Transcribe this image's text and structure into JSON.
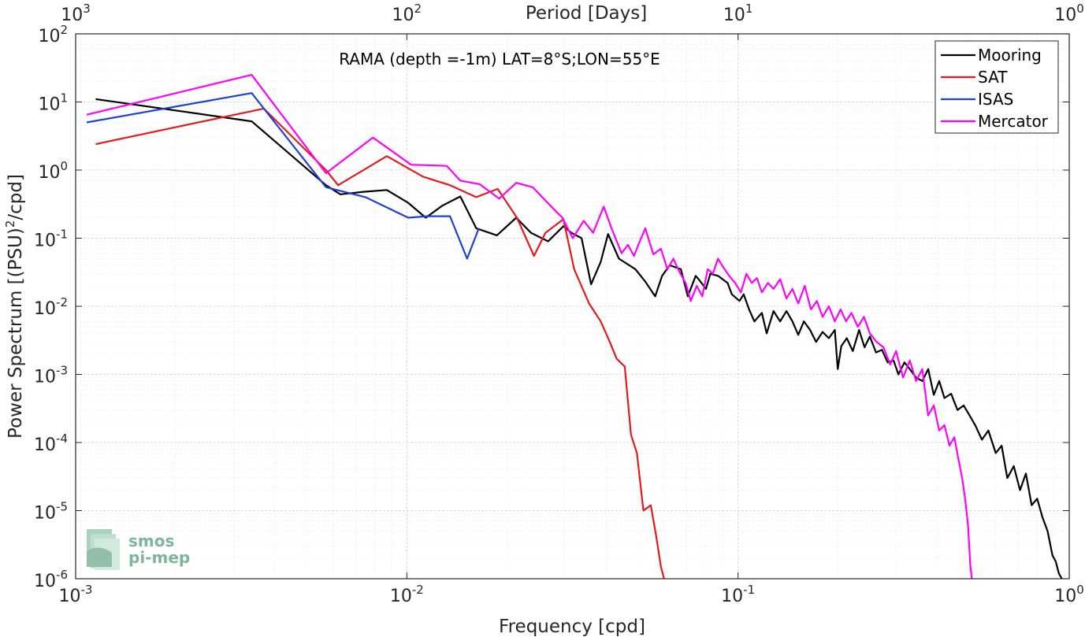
{
  "chart_data": {
    "type": "line",
    "title": "",
    "annotation": "RAMA (depth =-1m) LAT=8°S;LON=55°E",
    "xlabel": "Frequency [cpd]",
    "ylabel_main": "Power Spectrum [(PSU)",
    "ylabel_sup": "2",
    "ylabel_tail": "/cpd]",
    "x2label": "Period [Days]",
    "xscale": "log",
    "yscale": "log",
    "xlim": [
      0.001,
      1
    ],
    "ylim": [
      1e-06,
      100
    ],
    "grid": true,
    "legend_position": "top-right",
    "x_ticks": [
      {
        "value": 0.001,
        "base": "10",
        "exp": "-3"
      },
      {
        "value": 0.01,
        "base": "10",
        "exp": "-2"
      },
      {
        "value": 0.1,
        "base": "10",
        "exp": "-1"
      },
      {
        "value": 1,
        "base": "10",
        "exp": "0"
      }
    ],
    "x2_ticks": [
      {
        "value": 0.001,
        "base": "10",
        "exp": "3"
      },
      {
        "value": 0.01,
        "base": "10",
        "exp": "2"
      },
      {
        "value": 0.1,
        "base": "10",
        "exp": "1"
      },
      {
        "value": 1,
        "base": "10",
        "exp": "0"
      }
    ],
    "y_ticks": [
      {
        "value": 1e-06,
        "base": "10",
        "exp": "-6"
      },
      {
        "value": 1e-05,
        "base": "10",
        "exp": "-5"
      },
      {
        "value": 0.0001,
        "base": "10",
        "exp": "-4"
      },
      {
        "value": 0.001,
        "base": "10",
        "exp": "-3"
      },
      {
        "value": 0.01,
        "base": "10",
        "exp": "-2"
      },
      {
        "value": 0.1,
        "base": "10",
        "exp": "-1"
      },
      {
        "value": 1,
        "base": "10",
        "exp": "0"
      },
      {
        "value": 10,
        "base": "10",
        "exp": "1"
      },
      {
        "value": 100,
        "base": "10",
        "exp": "2"
      }
    ],
    "series": [
      {
        "name": "Mooring",
        "color": "#000000",
        "points": [
          [
            0.00115,
            11
          ],
          [
            0.0034,
            5.2
          ],
          [
            0.0057,
            0.6
          ],
          [
            0.0063,
            0.44
          ],
          [
            0.0074,
            0.48
          ],
          [
            0.0087,
            0.51
          ],
          [
            0.0101,
            0.33
          ],
          [
            0.0114,
            0.2
          ],
          [
            0.0128,
            0.3
          ],
          [
            0.0145,
            0.41
          ],
          [
            0.0162,
            0.14
          ],
          [
            0.0187,
            0.11
          ],
          [
            0.0214,
            0.2
          ],
          [
            0.0237,
            0.12
          ],
          [
            0.0267,
            0.09
          ],
          [
            0.0297,
            0.15
          ],
          [
            0.0314,
            0.12
          ],
          [
            0.0337,
            0.1
          ],
          [
            0.036,
            0.021
          ],
          [
            0.0385,
            0.045
          ],
          [
            0.0405,
            0.115
          ],
          [
            0.0437,
            0.05
          ],
          [
            0.049,
            0.035
          ],
          [
            0.0525,
            0.023
          ],
          [
            0.0562,
            0.014
          ],
          [
            0.059,
            0.028
          ],
          [
            0.0622,
            0.04
          ],
          [
            0.0672,
            0.035
          ],
          [
            0.0705,
            0.014
          ],
          [
            0.0745,
            0.028
          ],
          [
            0.0765,
            0.024
          ],
          [
            0.08,
            0.018
          ],
          [
            0.0825,
            0.03
          ],
          [
            0.087,
            0.028
          ],
          [
            0.093,
            0.022
          ],
          [
            0.0958,
            0.015
          ],
          [
            0.101,
            0.012
          ],
          [
            0.104,
            0.015
          ],
          [
            0.108,
            0.009
          ],
          [
            0.112,
            0.006
          ],
          [
            0.118,
            0.008
          ],
          [
            0.122,
            0.004
          ],
          [
            0.128,
            0.0085
          ],
          [
            0.134,
            0.006
          ],
          [
            0.14,
            0.0085
          ],
          [
            0.146,
            0.006
          ],
          [
            0.152,
            0.0038
          ],
          [
            0.158,
            0.006
          ],
          [
            0.165,
            0.0045
          ],
          [
            0.172,
            0.003
          ],
          [
            0.18,
            0.0042
          ],
          [
            0.188,
            0.0034
          ],
          [
            0.196,
            0.0045
          ],
          [
            0.2,
            0.0012
          ],
          [
            0.205,
            0.0026
          ],
          [
            0.213,
            0.0034
          ],
          [
            0.222,
            0.0022
          ],
          [
            0.232,
            0.0045
          ],
          [
            0.241,
            0.0025
          ],
          [
            0.25,
            0.0036
          ],
          [
            0.261,
            0.0021
          ],
          [
            0.272,
            0.0023
          ],
          [
            0.283,
            0.0015
          ],
          [
            0.295,
            0.0016
          ],
          [
            0.305,
            0.001
          ],
          [
            0.318,
            0.0015
          ],
          [
            0.33,
            0.0012
          ],
          [
            0.345,
            0.0009
          ],
          [
            0.36,
            0.0008
          ],
          [
            0.375,
            0.0012
          ],
          [
            0.39,
            0.0005
          ],
          [
            0.405,
            0.0008
          ],
          [
            0.42,
            0.00045
          ],
          [
            0.44,
            0.00052
          ],
          [
            0.46,
            0.0003
          ],
          [
            0.48,
            0.00035
          ],
          [
            0.5,
            0.00025
          ],
          [
            0.52,
            0.00018
          ],
          [
            0.545,
            0.00011
          ],
          [
            0.57,
            0.00015
          ],
          [
            0.6,
            7e-05
          ],
          [
            0.625,
            9e-05
          ],
          [
            0.65,
            3e-05
          ],
          [
            0.68,
            4.5e-05
          ],
          [
            0.71,
            2e-05
          ],
          [
            0.74,
            3.5e-05
          ],
          [
            0.77,
            1.2e-05
          ],
          [
            0.8,
            1.5e-05
          ],
          [
            0.83,
            8e-06
          ],
          [
            0.86,
            5e-06
          ],
          [
            0.89,
            2.2e-06
          ],
          [
            0.91,
            1.8e-06
          ],
          [
            0.93,
            1.2e-06
          ],
          [
            0.95,
            1e-06
          ]
        ]
      },
      {
        "name": "SAT",
        "color": "#e41a1c",
        "points": [
          [
            0.00115,
            2.4
          ],
          [
            0.0037,
            8.0
          ],
          [
            0.0057,
            1.0
          ],
          [
            0.0062,
            0.6
          ],
          [
            0.0087,
            1.6
          ],
          [
            0.0112,
            0.8
          ],
          [
            0.0135,
            0.6
          ],
          [
            0.0162,
            0.4
          ],
          [
            0.0188,
            0.53
          ],
          [
            0.0215,
            0.2
          ],
          [
            0.0242,
            0.055
          ],
          [
            0.0262,
            0.12
          ],
          [
            0.0297,
            0.19
          ],
          [
            0.032,
            0.035
          ],
          [
            0.0355,
            0.011
          ],
          [
            0.0385,
            0.006
          ],
          [
            0.041,
            0.003
          ],
          [
            0.043,
            0.0017
          ],
          [
            0.0455,
            0.0013
          ],
          [
            0.0475,
            0.00013
          ],
          [
            0.0495,
            7e-05
          ],
          [
            0.0518,
            1e-05
          ],
          [
            0.0545,
            1.2e-05
          ],
          [
            0.0565,
            4.5e-06
          ],
          [
            0.0585,
            1.5e-06
          ],
          [
            0.0598,
            1e-06
          ]
        ]
      },
      {
        "name": "ISAS",
        "color": "#1f3fd6",
        "points": [
          [
            0.00108,
            5.0
          ],
          [
            0.0034,
            13.5
          ],
          [
            0.0057,
            0.56
          ],
          [
            0.0075,
            0.4
          ],
          [
            0.0101,
            0.2
          ],
          [
            0.0115,
            0.21
          ],
          [
            0.0135,
            0.21
          ],
          [
            0.0152,
            0.05
          ],
          [
            0.0165,
            0.14
          ]
        ]
      },
      {
        "name": "Mercator",
        "color": "#ff00ff",
        "points": [
          [
            0.00108,
            6.5
          ],
          [
            0.0034,
            25
          ],
          [
            0.0057,
            0.9
          ],
          [
            0.0079,
            3.0
          ],
          [
            0.0103,
            1.2
          ],
          [
            0.0132,
            1.15
          ],
          [
            0.0145,
            0.7
          ],
          [
            0.0166,
            0.62
          ],
          [
            0.019,
            0.38
          ],
          [
            0.0214,
            0.65
          ],
          [
            0.024,
            0.56
          ],
          [
            0.0275,
            0.28
          ],
          [
            0.0295,
            0.2
          ],
          [
            0.0317,
            0.1
          ],
          [
            0.0342,
            0.18
          ],
          [
            0.0365,
            0.12
          ],
          [
            0.0393,
            0.29
          ],
          [
            0.0415,
            0.14
          ],
          [
            0.0445,
            0.06
          ],
          [
            0.0465,
            0.08
          ],
          [
            0.0485,
            0.055
          ],
          [
            0.0505,
            0.09
          ],
          [
            0.0525,
            0.14
          ],
          [
            0.0555,
            0.058
          ],
          [
            0.0585,
            0.07
          ],
          [
            0.0612,
            0.035
          ],
          [
            0.0638,
            0.05
          ],
          [
            0.0665,
            0.032
          ],
          [
            0.0695,
            0.022
          ],
          [
            0.072,
            0.012
          ],
          [
            0.075,
            0.02
          ],
          [
            0.078,
            0.014
          ],
          [
            0.081,
            0.035
          ],
          [
            0.084,
            0.03
          ],
          [
            0.087,
            0.05
          ],
          [
            0.09,
            0.038
          ],
          [
            0.094,
            0.028
          ],
          [
            0.098,
            0.022
          ],
          [
            0.102,
            0.016
          ],
          [
            0.106,
            0.03
          ],
          [
            0.11,
            0.022
          ],
          [
            0.114,
            0.026
          ],
          [
            0.118,
            0.016
          ],
          [
            0.123,
            0.022
          ],
          [
            0.128,
            0.018
          ],
          [
            0.134,
            0.025
          ],
          [
            0.14,
            0.013
          ],
          [
            0.146,
            0.018
          ],
          [
            0.152,
            0.011
          ],
          [
            0.159,
            0.02
          ],
          [
            0.166,
            0.009
          ],
          [
            0.173,
            0.012
          ],
          [
            0.18,
            0.007
          ],
          [
            0.188,
            0.01
          ],
          [
            0.196,
            0.006
          ],
          [
            0.204,
            0.009
          ],
          [
            0.212,
            0.006
          ],
          [
            0.22,
            0.008
          ],
          [
            0.23,
            0.005
          ],
          [
            0.24,
            0.007
          ],
          [
            0.25,
            0.004
          ],
          [
            0.262,
            0.003
          ],
          [
            0.275,
            0.0025
          ],
          [
            0.288,
            0.0014
          ],
          [
            0.3,
            0.0022
          ],
          [
            0.315,
            0.0009
          ],
          [
            0.33,
            0.0016
          ],
          [
            0.345,
            0.0008
          ],
          [
            0.36,
            0.0012
          ],
          [
            0.375,
            0.00025
          ],
          [
            0.39,
            0.00035
          ],
          [
            0.405,
            0.00015
          ],
          [
            0.42,
            0.00018
          ],
          [
            0.435,
            9e-05
          ],
          [
            0.45,
            0.00012
          ],
          [
            0.462,
            6e-05
          ],
          [
            0.475,
            3e-05
          ],
          [
            0.485,
            1.5e-05
          ],
          [
            0.495,
            6e-06
          ],
          [
            0.503,
            1.5e-06
          ],
          [
            0.508,
            1e-06
          ]
        ]
      }
    ]
  },
  "logo": {
    "line1": "smos",
    "line2": "pi-mep"
  }
}
